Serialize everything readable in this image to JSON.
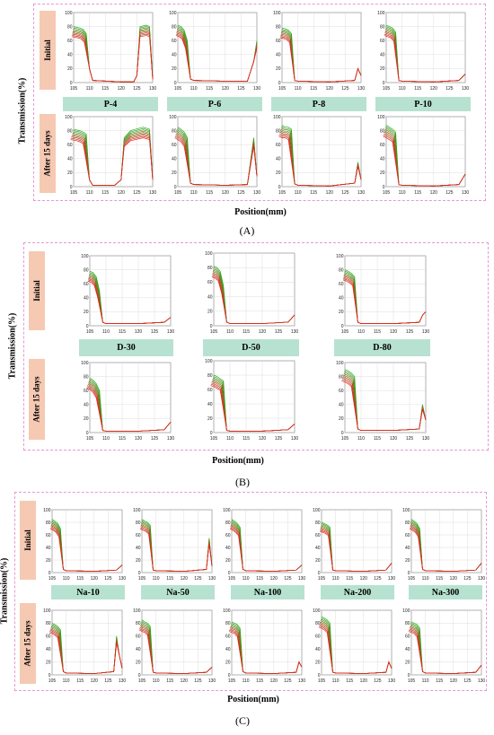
{
  "colors": {
    "initial_curve": "#22b21e",
    "late_curve": "#e8231f",
    "row_label_bg": "#f6c9b3",
    "condition_bg": "#b7e2d1",
    "frame": "#e39ad6"
  },
  "panel_a": {
    "letter": "(A)",
    "ylabel": "Transmission(%)",
    "xlabel": "Position(mm)",
    "row1_label": "Initial",
    "row2_label": "After 15 days",
    "conditions": [
      "P-4",
      "P-6",
      "P-8",
      "P-10"
    ]
  },
  "panel_b": {
    "letter": "(B)",
    "ylabel": "Transmission(%)",
    "xlabel": "Position(mm)",
    "row1_label": "Initial",
    "row2_label": "After 15 days",
    "conditions": [
      "D-30",
      "D-50",
      "D-80"
    ]
  },
  "panel_c": {
    "letter": "(C)",
    "ylabel": "Transmission(%)",
    "xlabel": "Position(mm)",
    "row1_label": "Initial",
    "row2_label": "After 15 days",
    "conditions": [
      "Na-10",
      "Na-50",
      "Na-100",
      "Na-200",
      "Na-300"
    ]
  },
  "chart_data": {
    "type": "line",
    "xlim": [
      105,
      130
    ],
    "ylim": [
      0,
      100
    ],
    "x_ticks": [
      105,
      110,
      115,
      120,
      125,
      130
    ],
    "y_ticks": [
      0,
      20,
      40,
      60,
      80,
      100
    ],
    "grid": true,
    "subplots": {
      "P-4": {
        "initial": [
          [
            105,
            80
          ],
          [
            107,
            78
          ],
          [
            108,
            76
          ],
          [
            109,
            70
          ],
          [
            110,
            20
          ],
          [
            111,
            3
          ],
          [
            120,
            1
          ],
          [
            124,
            1
          ],
          [
            125,
            10
          ],
          [
            126,
            80
          ],
          [
            128,
            82
          ],
          [
            129,
            80
          ],
          [
            130,
            5
          ]
        ],
        "after": [
          [
            105,
            82
          ],
          [
            107,
            80
          ],
          [
            108,
            78
          ],
          [
            109,
            75
          ],
          [
            110,
            10
          ],
          [
            111,
            2
          ],
          [
            118,
            2
          ],
          [
            120,
            10
          ],
          [
            121,
            70
          ],
          [
            123,
            80
          ],
          [
            127,
            85
          ],
          [
            129,
            82
          ],
          [
            130,
            10
          ]
        ]
      },
      "P-6": {
        "initial": [
          [
            105,
            82
          ],
          [
            106,
            80
          ],
          [
            107,
            75
          ],
          [
            108,
            60
          ],
          [
            109,
            5
          ],
          [
            110,
            3
          ],
          [
            120,
            2
          ],
          [
            127,
            2
          ],
          [
            129,
            30
          ],
          [
            130,
            60
          ]
        ],
        "after": [
          [
            105,
            85
          ],
          [
            106,
            82
          ],
          [
            107,
            78
          ],
          [
            108,
            70
          ],
          [
            109,
            5
          ],
          [
            110,
            3
          ],
          [
            120,
            2
          ],
          [
            127,
            3
          ],
          [
            129,
            70
          ],
          [
            130,
            15
          ]
        ]
      },
      "P-8": {
        "initial": [
          [
            105,
            78
          ],
          [
            106,
            77
          ],
          [
            107,
            75
          ],
          [
            108,
            70
          ],
          [
            109,
            3
          ],
          [
            110,
            2
          ],
          [
            120,
            1
          ],
          [
            128,
            3
          ],
          [
            129,
            20
          ],
          [
            130,
            10
          ]
        ],
        "after": [
          [
            105,
            88
          ],
          [
            106,
            85
          ],
          [
            107,
            85
          ],
          [
            108,
            82
          ],
          [
            109,
            4
          ],
          [
            110,
            2
          ],
          [
            120,
            1
          ],
          [
            128,
            5
          ],
          [
            129,
            35
          ],
          [
            130,
            10
          ]
        ]
      },
      "P-10": {
        "initial": [
          [
            105,
            82
          ],
          [
            106,
            80
          ],
          [
            107,
            78
          ],
          [
            108,
            72
          ],
          [
            109,
            3
          ],
          [
            110,
            2
          ],
          [
            120,
            1
          ],
          [
            128,
            3
          ],
          [
            130,
            12
          ]
        ],
        "after": [
          [
            105,
            88
          ],
          [
            106,
            85
          ],
          [
            107,
            82
          ],
          [
            108,
            78
          ],
          [
            109,
            3
          ],
          [
            110,
            2
          ],
          [
            120,
            1
          ],
          [
            128,
            3
          ],
          [
            130,
            18
          ]
        ]
      },
      "D-30": {
        "initial": [
          [
            105,
            78
          ],
          [
            106,
            76
          ],
          [
            107,
            70
          ],
          [
            108,
            50
          ],
          [
            109,
            5
          ],
          [
            110,
            3
          ],
          [
            120,
            3
          ],
          [
            128,
            5
          ],
          [
            130,
            12
          ]
        ],
        "after": [
          [
            105,
            78
          ],
          [
            106,
            75
          ],
          [
            107,
            70
          ],
          [
            108,
            60
          ],
          [
            109,
            3
          ],
          [
            110,
            2
          ],
          [
            120,
            2
          ],
          [
            128,
            4
          ],
          [
            130,
            15
          ]
        ]
      },
      "D-50": {
        "initial": [
          [
            105,
            82
          ],
          [
            106,
            80
          ],
          [
            107,
            75
          ],
          [
            108,
            55
          ],
          [
            109,
            5
          ],
          [
            110,
            3
          ],
          [
            120,
            3
          ],
          [
            128,
            5
          ],
          [
            130,
            15
          ]
        ],
        "after": [
          [
            105,
            80
          ],
          [
            106,
            78
          ],
          [
            107,
            75
          ],
          [
            108,
            72
          ],
          [
            109,
            3
          ],
          [
            110,
            2
          ],
          [
            120,
            2
          ],
          [
            128,
            4
          ],
          [
            130,
            12
          ]
        ]
      },
      "D-80": {
        "initial": [
          [
            105,
            80
          ],
          [
            106,
            78
          ],
          [
            107,
            75
          ],
          [
            108,
            70
          ],
          [
            109,
            5
          ],
          [
            110,
            3
          ],
          [
            120,
            3
          ],
          [
            128,
            5
          ],
          [
            129,
            15
          ],
          [
            130,
            20
          ]
        ],
        "after": [
          [
            105,
            90
          ],
          [
            106,
            88
          ],
          [
            107,
            85
          ],
          [
            108,
            80
          ],
          [
            109,
            5
          ],
          [
            110,
            3
          ],
          [
            120,
            3
          ],
          [
            128,
            5
          ],
          [
            129,
            40
          ],
          [
            130,
            18
          ]
        ]
      },
      "Na-10": {
        "initial": [
          [
            105,
            85
          ],
          [
            106,
            82
          ],
          [
            107,
            78
          ],
          [
            108,
            70
          ],
          [
            109,
            5
          ],
          [
            110,
            3
          ],
          [
            120,
            2
          ],
          [
            128,
            4
          ],
          [
            130,
            12
          ]
        ],
        "after": [
          [
            105,
            80
          ],
          [
            106,
            78
          ],
          [
            107,
            75
          ],
          [
            108,
            70
          ],
          [
            109,
            5
          ],
          [
            110,
            3
          ],
          [
            120,
            2
          ],
          [
            127,
            5
          ],
          [
            128,
            60
          ],
          [
            129,
            30
          ],
          [
            130,
            10
          ]
        ]
      },
      "Na-50": {
        "initial": [
          [
            105,
            85
          ],
          [
            106,
            82
          ],
          [
            107,
            80
          ],
          [
            108,
            75
          ],
          [
            109,
            4
          ],
          [
            110,
            3
          ],
          [
            120,
            2
          ],
          [
            128,
            5
          ],
          [
            129,
            55
          ],
          [
            130,
            10
          ]
        ],
        "after": [
          [
            105,
            85
          ],
          [
            106,
            82
          ],
          [
            107,
            80
          ],
          [
            108,
            75
          ],
          [
            109,
            4
          ],
          [
            110,
            3
          ],
          [
            120,
            2
          ],
          [
            128,
            4
          ],
          [
            130,
            12
          ]
        ]
      },
      "Na-100": {
        "initial": [
          [
            105,
            85
          ],
          [
            106,
            82
          ],
          [
            107,
            78
          ],
          [
            108,
            72
          ],
          [
            109,
            5
          ],
          [
            110,
            3
          ],
          [
            120,
            2
          ],
          [
            128,
            4
          ],
          [
            130,
            12
          ]
        ],
        "after": [
          [
            105,
            82
          ],
          [
            106,
            80
          ],
          [
            107,
            78
          ],
          [
            108,
            72
          ],
          [
            109,
            5
          ],
          [
            110,
            3
          ],
          [
            120,
            2
          ],
          [
            128,
            4
          ],
          [
            129,
            20
          ],
          [
            130,
            12
          ]
        ]
      },
      "Na-200": {
        "initial": [
          [
            105,
            80
          ],
          [
            106,
            78
          ],
          [
            107,
            76
          ],
          [
            108,
            72
          ],
          [
            109,
            4
          ],
          [
            110,
            3
          ],
          [
            120,
            2
          ],
          [
            128,
            4
          ],
          [
            130,
            15
          ]
        ],
        "after": [
          [
            105,
            90
          ],
          [
            106,
            88
          ],
          [
            107,
            85
          ],
          [
            108,
            80
          ],
          [
            109,
            4
          ],
          [
            110,
            3
          ],
          [
            120,
            2
          ],
          [
            128,
            4
          ],
          [
            129,
            20
          ],
          [
            130,
            10
          ]
        ]
      },
      "Na-300": {
        "initial": [
          [
            105,
            85
          ],
          [
            106,
            82
          ],
          [
            107,
            78
          ],
          [
            108,
            70
          ],
          [
            109,
            5
          ],
          [
            110,
            3
          ],
          [
            120,
            2
          ],
          [
            128,
            4
          ],
          [
            130,
            15
          ]
        ],
        "after": [
          [
            105,
            82
          ],
          [
            106,
            80
          ],
          [
            107,
            78
          ],
          [
            108,
            72
          ],
          [
            109,
            5
          ],
          [
            110,
            3
          ],
          [
            120,
            2
          ],
          [
            128,
            4
          ],
          [
            130,
            15
          ]
        ]
      }
    }
  }
}
